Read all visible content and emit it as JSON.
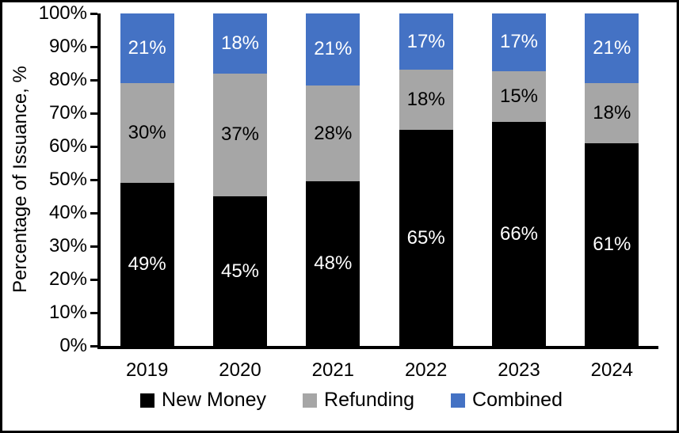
{
  "chart_data": {
    "type": "bar",
    "variant": "stacked-100-percent",
    "title": "",
    "ylabel": "Percentage of Issuance, %",
    "xlabel": "",
    "categories": [
      "2019",
      "2020",
      "2021",
      "2022",
      "2023",
      "2024"
    ],
    "series": [
      {
        "name": "New Money",
        "color": "#000000",
        "label_color": "#FFFFFF",
        "values": [
          49,
          45,
          48,
          65,
          66,
          61
        ]
      },
      {
        "name": "Refunding",
        "color": "#A6A6A6",
        "label_color": "#000000",
        "values": [
          30,
          37,
          28,
          18,
          15,
          18
        ]
      },
      {
        "name": "Combined",
        "color": "#4472C4",
        "label_color": "#FFFFFF",
        "values": [
          21,
          18,
          21,
          17,
          17,
          21
        ]
      }
    ],
    "data_label_suffix": "%",
    "yticks": [
      "0%",
      "10%",
      "20%",
      "30%",
      "40%",
      "50%",
      "60%",
      "70%",
      "80%",
      "90%",
      "100%"
    ],
    "ylim": [
      0,
      100
    ],
    "grid": false,
    "legend_position": "bottom",
    "axis_color": "#000000",
    "background_color": "#FFFFFF"
  }
}
